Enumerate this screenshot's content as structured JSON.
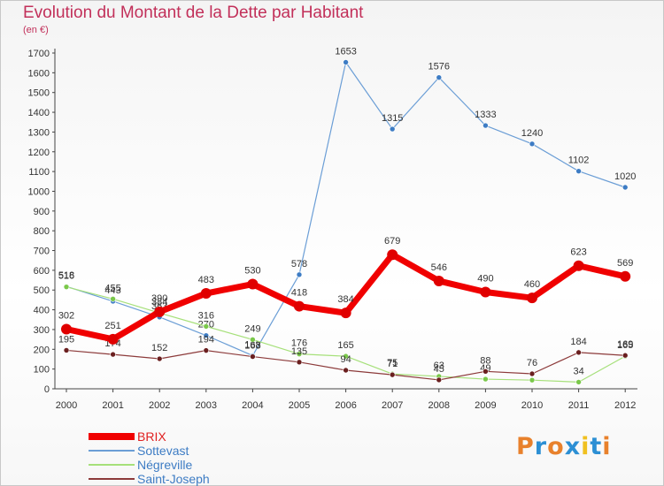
{
  "title": "Evolution du Montant de la Dette par Habitant",
  "unit_label": "(en €)",
  "logo": {
    "letters": [
      "P",
      "r",
      "o",
      "x",
      "i",
      "t",
      "i"
    ],
    "colors": [
      "#e8812c",
      "#2c8fd4",
      "#e8812c",
      "#2c8fd4",
      "#f0c020",
      "#2c8fd4",
      "#e8812c"
    ]
  },
  "chart_data": {
    "type": "line",
    "x": [
      "2000",
      "2001",
      "2002",
      "2003",
      "2004",
      "2005",
      "2006",
      "2007",
      "2008",
      "2009",
      "2010",
      "2011",
      "2012"
    ],
    "ylim": [
      0,
      1700
    ],
    "yticks": [
      0,
      100,
      200,
      300,
      400,
      500,
      600,
      700,
      800,
      900,
      1000,
      1100,
      1200,
      1300,
      1400,
      1500,
      1600,
      1700
    ],
    "grid": false,
    "legend_position": "bottom-left",
    "series": [
      {
        "name": "Sottevast",
        "color": "#6b9ed6",
        "marker": "#3d7cc4",
        "values": [
          518,
          443,
          363,
          270,
          168,
          578,
          1653,
          1315,
          1576,
          1333,
          1240,
          1102,
          1020
        ],
        "labels": [
          "518",
          "443",
          "363",
          "270",
          "168",
          "578",
          "1653",
          "1315",
          "1576",
          "1333",
          "1240",
          "1102",
          "1020"
        ]
      },
      {
        "name": "Négreville",
        "color": "#a6e07a",
        "marker": "#7ac84a",
        "values": [
          516,
          455,
          384,
          316,
          249,
          176,
          165,
          75,
          63,
          49,
          44,
          34,
          165
        ],
        "labels": [
          "516",
          "455",
          "384",
          "316",
          "249",
          "176",
          "165",
          "75",
          "63",
          "49",
          "",
          "34",
          "165"
        ]
      },
      {
        "name": "Saint-Joseph",
        "color": "#8c3a3a",
        "marker": "#6a1f1f",
        "values": [
          195,
          174,
          152,
          194,
          163,
          135,
          94,
          71,
          45,
          88,
          76,
          184,
          169
        ],
        "labels": [
          "195",
          "174",
          "152",
          "194",
          "163",
          "135",
          "94",
          "71",
          "45",
          "88",
          "76",
          "184",
          "169"
        ]
      },
      {
        "name": "BRIX",
        "color": "#f00000",
        "marker": "#e00000",
        "values": [
          302,
          251,
          390,
          483,
          530,
          418,
          384,
          679,
          546,
          490,
          460,
          623,
          569
        ],
        "labels": [
          "302",
          "251",
          "390",
          "483",
          "530",
          "418",
          "384",
          "679",
          "546",
          "490",
          "460",
          "623",
          "569"
        ]
      }
    ]
  },
  "legend": [
    {
      "name": "BRIX",
      "color": "#f00000"
    },
    {
      "name": "Sottevast",
      "color": "#6b9ed6"
    },
    {
      "name": "Négreville",
      "color": "#a6e07a"
    },
    {
      "name": "Saint-Joseph",
      "color": "#8c3a3a"
    }
  ]
}
